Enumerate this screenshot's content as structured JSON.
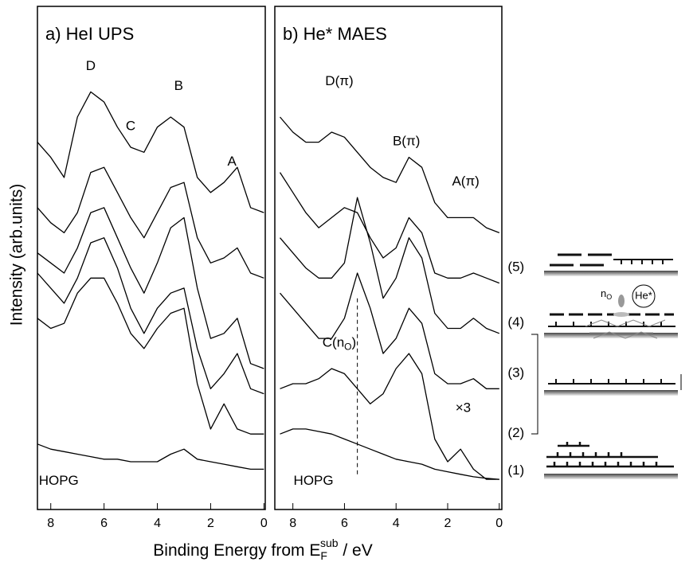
{
  "axis_labels": {
    "y": "Intensity (arb.units)",
    "x": {
      "text": "Binding Energy from E",
      "sub": "F",
      "sup": "sub",
      "tail": " / eV"
    }
  },
  "chart_data": [
    {
      "type": "line",
      "title": "a) HeI  UPS",
      "x": [
        8.5,
        8,
        7.5,
        7,
        6.5,
        6,
        5.5,
        5,
        4.5,
        4,
        3.5,
        3,
        2.5,
        2,
        1.5,
        1,
        0.5,
        0
      ],
      "xlim": [
        8.5,
        -0.05
      ],
      "xticks": [
        8,
        6,
        4,
        2,
        0
      ],
      "ylim": [
        0,
        10
      ],
      "series": [
        {
          "color": "#000000",
          "values": [
            7.3,
            7.0,
            6.6,
            7.8,
            8.3,
            8.1,
            7.6,
            7.2,
            7.1,
            7.6,
            7.8,
            7.6,
            6.6,
            6.3,
            6.5,
            6.8,
            6.0,
            5.9
          ]
        },
        {
          "color": "#000000",
          "values": [
            6.0,
            5.7,
            5.5,
            5.9,
            6.7,
            6.8,
            6.3,
            5.8,
            5.4,
            5.9,
            6.4,
            6.5,
            5.4,
            4.9,
            5.0,
            5.2,
            4.7,
            4.6
          ]
        },
        {
          "color": "#000000",
          "values": [
            5.1,
            4.9,
            4.7,
            5.2,
            5.9,
            6.0,
            5.4,
            4.8,
            4.3,
            4.9,
            5.6,
            5.8,
            4.4,
            3.4,
            3.5,
            3.8,
            2.9,
            2.8
          ]
        },
        {
          "color": "#000000",
          "values": [
            4.7,
            4.4,
            4.1,
            4.6,
            5.3,
            5.4,
            4.8,
            4.0,
            3.5,
            4.0,
            4.3,
            4.4,
            3.2,
            2.4,
            2.7,
            3.1,
            2.4,
            2.3
          ]
        },
        {
          "color": "#000000",
          "values": [
            3.8,
            3.6,
            3.7,
            4.3,
            4.6,
            4.6,
            4.1,
            3.5,
            3.2,
            3.6,
            3.9,
            4.0,
            2.5,
            1.6,
            2.1,
            1.6,
            1.5,
            1.5
          ]
        },
        {
          "color": "#000000",
          "values": [
            1.3,
            1.2,
            1.15,
            1.1,
            1.05,
            1.0,
            1.0,
            0.95,
            0.95,
            0.95,
            1.1,
            1.2,
            1.0,
            0.95,
            0.9,
            0.85,
            0.8,
            0.8
          ]
        }
      ],
      "annotations": [
        {
          "text": "D",
          "x": 6.5,
          "y": 8.8
        },
        {
          "text": "C",
          "x": 5.0,
          "y": 7.6
        },
        {
          "text": "B",
          "x": 3.2,
          "y": 8.4
        },
        {
          "text": "A",
          "x": 1.2,
          "y": 6.9
        },
        {
          "text": "HOPG",
          "x": 7.7,
          "y": 0.55
        }
      ]
    },
    {
      "type": "line",
      "title": "b) He* MAES",
      "x": [
        8.5,
        8,
        7.5,
        7,
        6.5,
        6,
        5.5,
        5,
        4.5,
        4,
        3.5,
        3,
        2.5,
        2,
        1.5,
        1,
        0.5,
        0
      ],
      "xlim": [
        8.7,
        -0.1
      ],
      "xticks": [
        8,
        6,
        4,
        2,
        0
      ],
      "ylim": [
        0,
        10
      ],
      "series": [
        {
          "color": "#000000",
          "values": [
            7.8,
            7.5,
            7.3,
            7.3,
            7.5,
            7.4,
            7.1,
            6.8,
            6.6,
            6.5,
            7.0,
            6.8,
            6.1,
            5.8,
            5.8,
            5.8,
            5.6,
            5.5
          ]
        },
        {
          "color": "#000000",
          "values": [
            6.7,
            6.3,
            5.9,
            5.6,
            5.8,
            6.0,
            5.9,
            5.4,
            5.0,
            5.2,
            5.8,
            5.5,
            4.7,
            4.6,
            4.6,
            4.7,
            4.6,
            4.5
          ]
        },
        {
          "color": "#000000",
          "values": [
            5.4,
            5.1,
            4.8,
            4.6,
            4.6,
            4.9,
            6.2,
            5.3,
            4.2,
            4.6,
            5.4,
            5.0,
            3.9,
            3.6,
            3.6,
            3.8,
            3.6,
            3.5
          ]
        },
        {
          "color": "#000000",
          "values": [
            4.3,
            4.0,
            3.7,
            3.4,
            3.4,
            3.8,
            4.7,
            4.0,
            3.1,
            3.4,
            4.0,
            3.7,
            2.7,
            2.5,
            2.5,
            2.6,
            2.4,
            2.4
          ]
        },
        {
          "color": "#000000",
          "values": [
            2.4,
            2.5,
            2.5,
            2.6,
            2.8,
            2.7,
            2.4,
            2.1,
            2.3,
            2.8,
            3.1,
            2.7,
            1.4,
            0.95,
            1.2,
            0.8,
            0.6,
            0.6
          ]
        },
        {
          "color": "#000000",
          "values": [
            1.5,
            1.6,
            1.6,
            1.55,
            1.5,
            1.4,
            1.3,
            1.2,
            1.1,
            1.0,
            0.95,
            0.9,
            0.8,
            0.75,
            0.7,
            0.65,
            0.62,
            0.6
          ]
        }
      ],
      "vline": {
        "x": 5.5,
        "y": [
          0.7,
          4.2
        ]
      },
      "annotations": [
        {
          "text": "D(π)",
          "x": 6.2,
          "y": 8.5
        },
        {
          "text": "B(π)",
          "x": 3.6,
          "y": 7.3
        },
        {
          "text": "A(π)",
          "x": 1.3,
          "y": 6.5
        },
        {
          "text": "C(n",
          "sub": "O",
          "tail": ")",
          "x": 6.2,
          "y": 3.3
        },
        {
          "text": "×3",
          "x": 1.4,
          "y": 2.0
        },
        {
          "text": "HOPG",
          "x": 7.2,
          "y": 0.55
        },
        {
          "text": "(5)",
          "x": -0.65,
          "y": 4.8
        },
        {
          "text": "(4)",
          "x": -0.65,
          "y": 3.7
        },
        {
          "text": "(3)",
          "x": -0.65,
          "y": 2.7
        },
        {
          "text": "(2)",
          "x": -0.65,
          "y": 1.5
        },
        {
          "text": "(1)",
          "x": -0.65,
          "y": 0.76
        }
      ]
    }
  ],
  "schematic": {
    "he": "He*",
    "n": "n",
    "n_sub": "O"
  }
}
